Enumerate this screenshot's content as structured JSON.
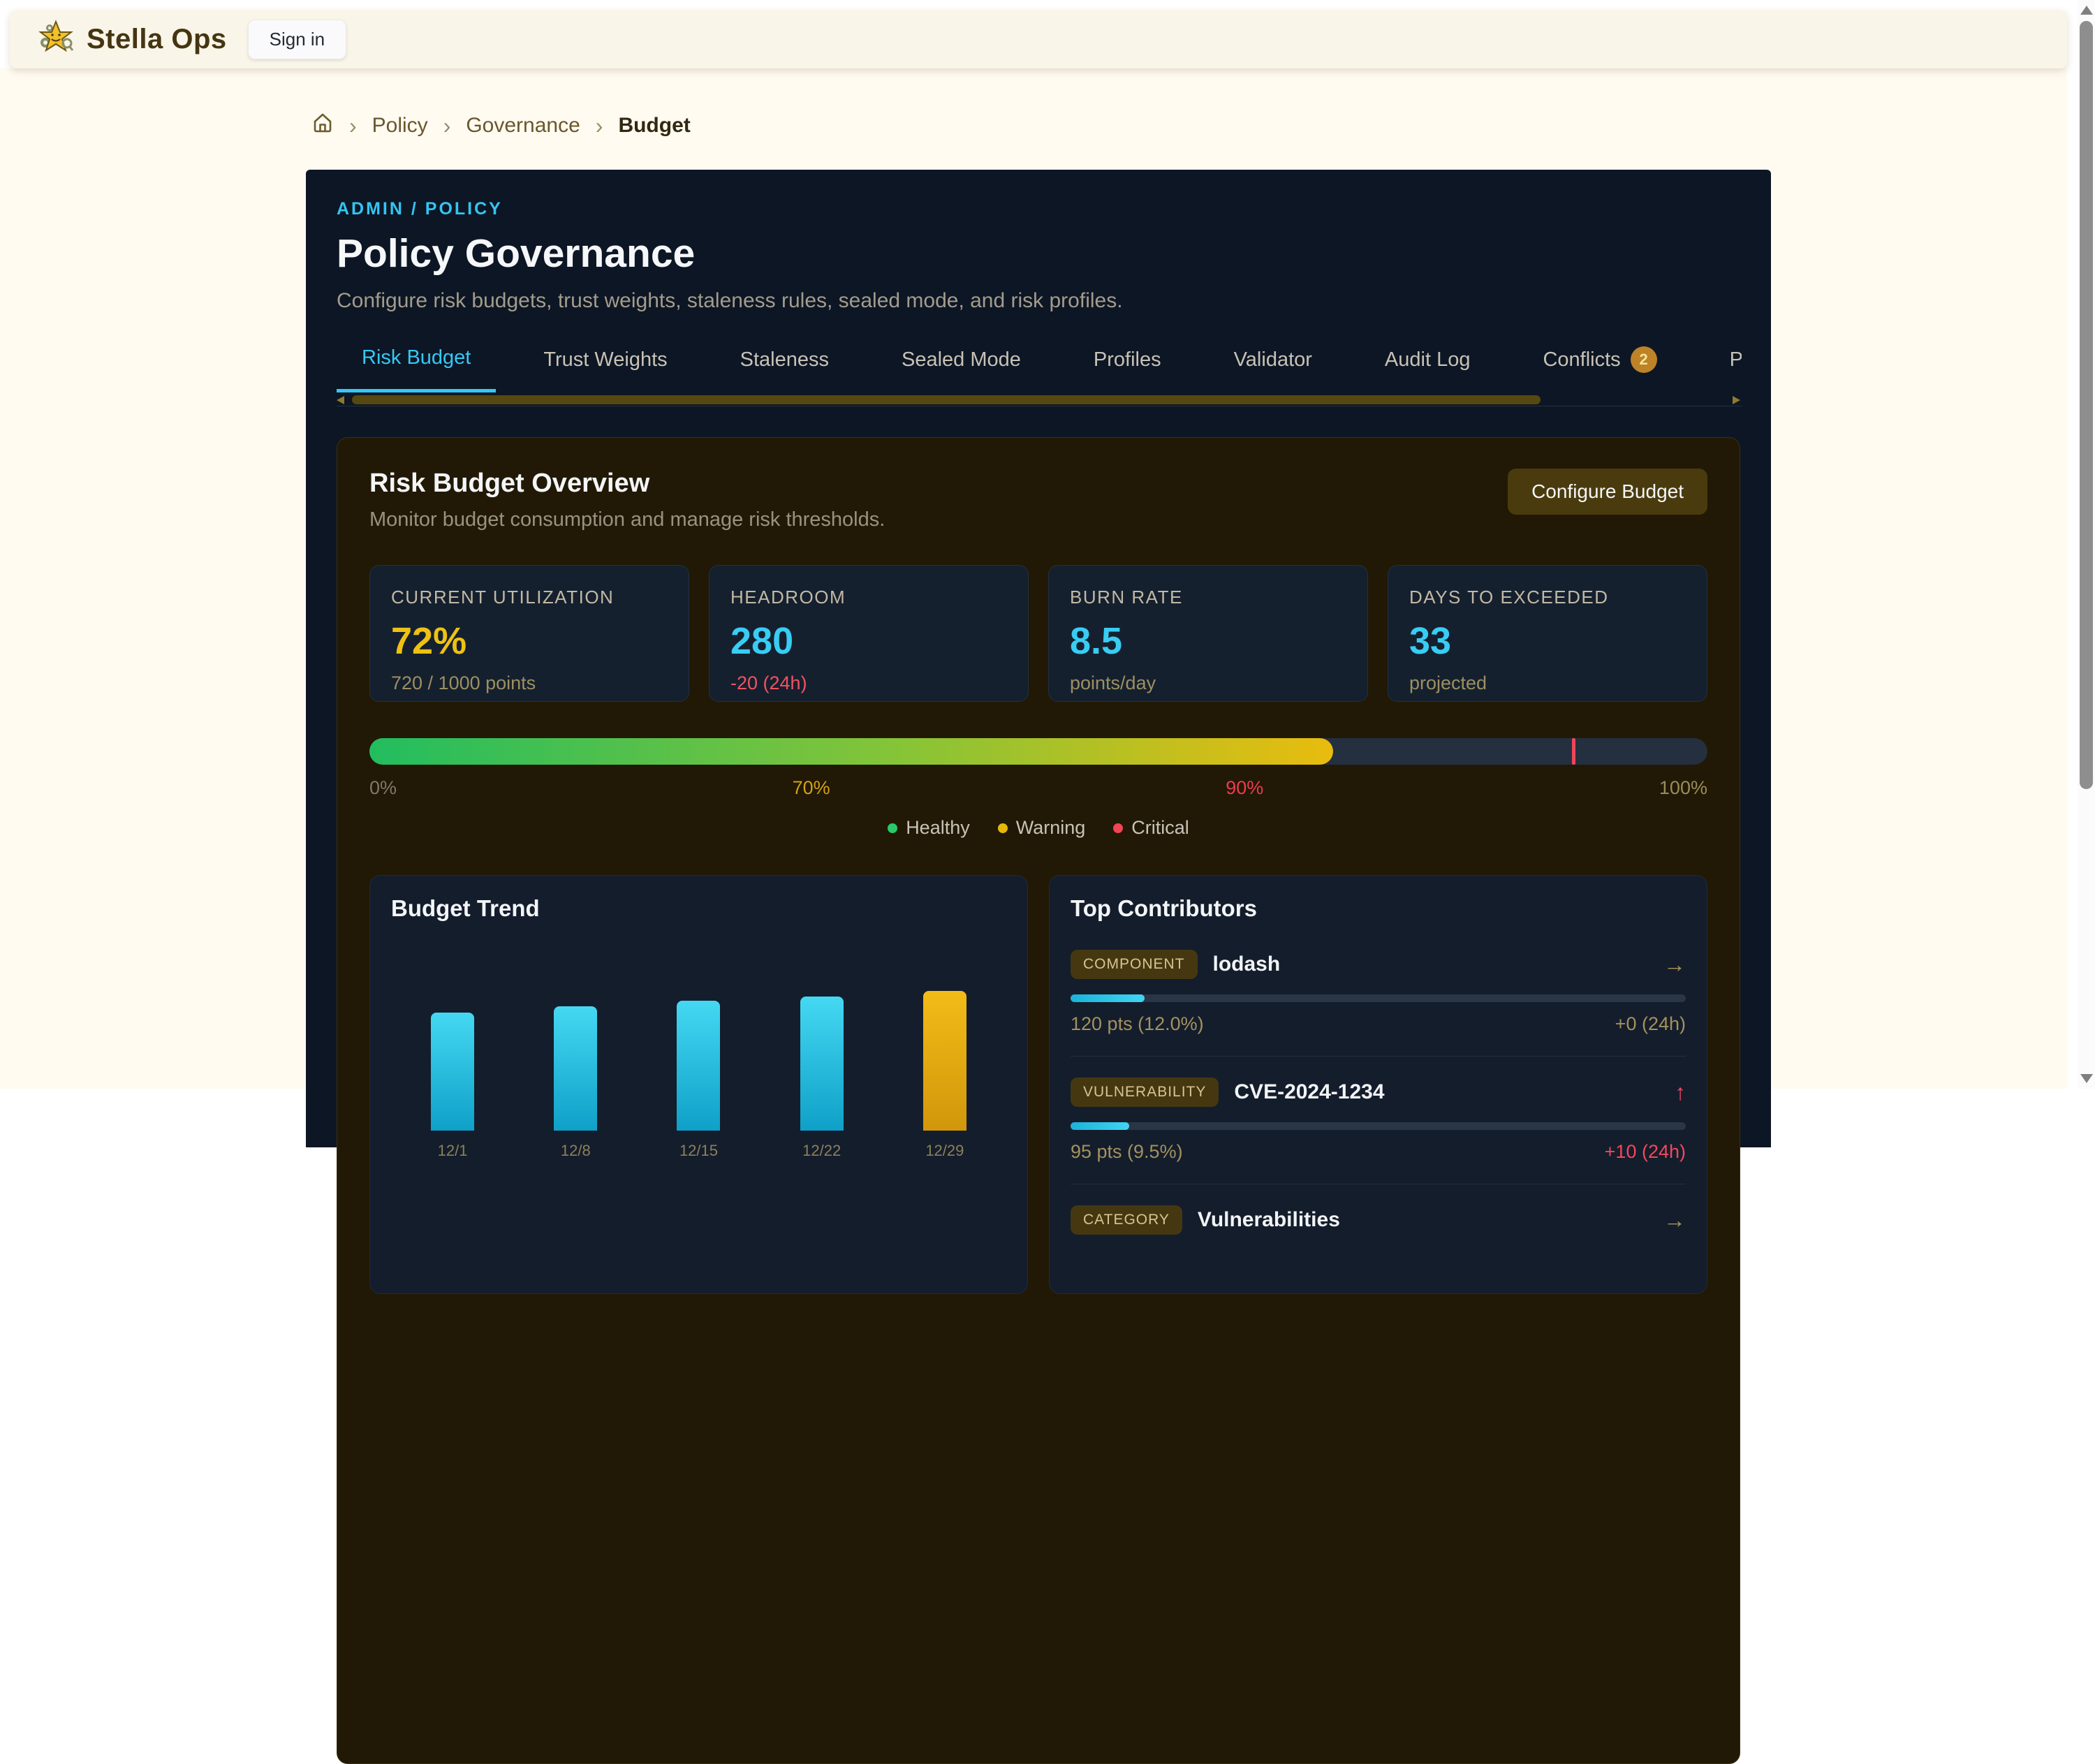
{
  "header": {
    "brand": "Stella Ops",
    "sign_in": "Sign in"
  },
  "breadcrumb": {
    "separator": "›",
    "items": [
      "Policy",
      "Governance",
      "Budget"
    ]
  },
  "hero": {
    "eyebrow": "ADMIN / POLICY",
    "title": "Policy Governance",
    "subtitle": "Configure risk budgets, trust weights, staleness rules, sealed mode, and risk profiles."
  },
  "tabs": {
    "items": [
      {
        "label": "Risk Budget",
        "active": true
      },
      {
        "label": "Trust Weights"
      },
      {
        "label": "Staleness"
      },
      {
        "label": "Sealed Mode"
      },
      {
        "label": "Profiles"
      },
      {
        "label": "Validator"
      },
      {
        "label": "Audit Log"
      },
      {
        "label": "Conflicts",
        "badge": "2"
      },
      {
        "label": "Pl"
      }
    ]
  },
  "overview": {
    "title": "Risk Budget Overview",
    "subtitle": "Monitor budget consumption and manage risk thresholds.",
    "configure_button": "Configure Budget",
    "stats": [
      {
        "label": "CURRENT UTILIZATION",
        "value": "72%",
        "sub": "720 / 1000 points"
      },
      {
        "label": "HEADROOM",
        "value": "280",
        "sub": "-20 (24h)"
      },
      {
        "label": "BURN RATE",
        "value": "8.5",
        "sub": "points/day"
      },
      {
        "label": "DAYS TO EXCEEDED",
        "value": "33",
        "sub": "projected"
      }
    ],
    "gauge": {
      "percent": 72,
      "marker_percent": 90,
      "tick_labels": [
        {
          "text": "0%",
          "color": "#7F7969"
        },
        {
          "text": "70%",
          "color": "#D2A112"
        },
        {
          "text": "90%",
          "color": "#EC3B52"
        },
        {
          "text": "100%",
          "color": "#9A8D5B"
        }
      ],
      "legend": [
        {
          "label": "Healthy",
          "color": "#2BC96A"
        },
        {
          "label": "Warning",
          "color": "#E5B70B"
        },
        {
          "label": "Critical",
          "color": "#F14456"
        }
      ]
    }
  },
  "chart_data": {
    "type": "bar",
    "title": "Budget Trend",
    "categories": [
      "12/1",
      "12/8",
      "12/15",
      "12/22",
      "12/29"
    ],
    "values": [
      61,
      64,
      67,
      69,
      72
    ],
    "bar_colors": [
      "#29C8EA",
      "#29C8EA",
      "#29C8EA",
      "#29C8EA",
      "#E9AE0F"
    ],
    "xlabel": "",
    "ylabel": "",
    "ylim": [
      0,
      72
    ],
    "grid": false,
    "legend_position": "none"
  },
  "top_contributors": {
    "title": "Top Contributors",
    "items": [
      {
        "badge": "COMPONENT",
        "name": "lodash",
        "trend_icon": "→",
        "trend_color": "#A8925C",
        "progress_pct": 12,
        "points": "120 pts (12.0%)",
        "delta": "+0 (24h)",
        "delta_color": "#A3925D"
      },
      {
        "badge": "VULNERABILITY",
        "name": "CVE-2024-1234",
        "trend_icon": "↑",
        "trend_color": "#F0475C",
        "progress_pct": 9.5,
        "points": "95 pts (9.5%)",
        "delta": "+10 (24h)",
        "delta_color": "#F2485C"
      },
      {
        "badge": "CATEGORY",
        "name": "Vulnerabilities",
        "trend_icon": "→",
        "trend_color": "#A8925C"
      }
    ]
  },
  "colors": {
    "page_bg": "#FFFBF1",
    "header_bg": "#FAF5E9",
    "panel_bg": "#0D1624",
    "overview_card_bg": "#211905",
    "stat_card_bg": "#15202F",
    "accent_cyan": "#36C8F4",
    "accent_gold": "#EEC112",
    "accent_red": "#F14456",
    "accent_green": "#2BC96A"
  },
  "icons": {
    "logo": "star-mascot-with-gears",
    "home": "house-outline",
    "breadcrumb_chevron": "›",
    "trend_right": "→",
    "trend_up": "↑",
    "scroll_up": "▲",
    "scroll_down": "▼"
  }
}
